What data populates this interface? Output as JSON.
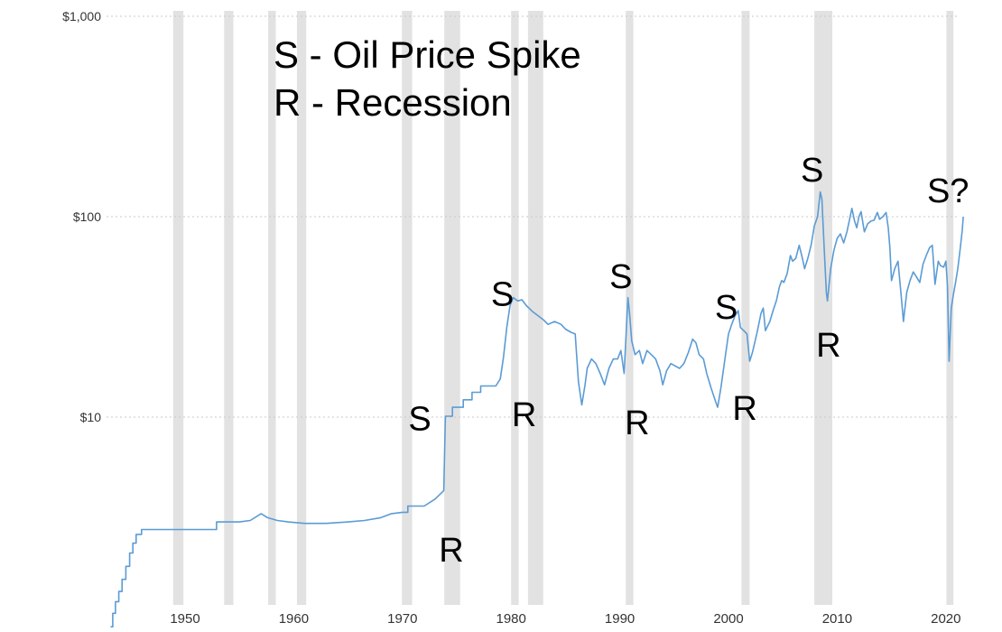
{
  "chart_data": {
    "type": "line",
    "title": "",
    "legend": {
      "line1": "S - Oil Price Spike",
      "line2": "R - Recession"
    },
    "y_axis": {
      "scale": "log",
      "ticks": [
        {
          "value": 10,
          "label": "$10"
        },
        {
          "value": 100,
          "label": "$100"
        },
        {
          "value": 1000,
          "label": "$1,000"
        }
      ]
    },
    "x_axis": {
      "ticks": [
        1950,
        1960,
        1970,
        1980,
        1990,
        2000,
        2010,
        2020
      ]
    },
    "grid": "horizontal-dotted",
    "colors": {
      "line": "#5b9bd5",
      "recession_band": "#e2e2e2",
      "gridline": "#c9c9c9",
      "axis_text": "#333333",
      "annotation_text": "#000000",
      "background": "#ffffff"
    },
    "recession_bands_years": [
      [
        1948.9,
        1949.85
      ],
      [
        1953.6,
        1954.45
      ],
      [
        1957.65,
        1958.35
      ],
      [
        1960.3,
        1961.15
      ],
      [
        1969.95,
        1970.9
      ],
      [
        1973.85,
        1975.3
      ],
      [
        1980.0,
        1980.7
      ],
      [
        1981.55,
        1982.95
      ],
      [
        1990.55,
        1991.25
      ],
      [
        2001.2,
        2001.95
      ],
      [
        2007.9,
        2009.55
      ],
      [
        2020.05,
        2020.7
      ]
    ],
    "annotations": [
      {
        "label": "S",
        "year": 1971.6,
        "price": 8.6
      },
      {
        "label": "R",
        "year": 1974.5,
        "price": 1.9
      },
      {
        "label": "S",
        "year": 1979.2,
        "price": 36
      },
      {
        "label": "R",
        "year": 1981.2,
        "price": 9.0
      },
      {
        "label": "S",
        "year": 1990.1,
        "price": 44
      },
      {
        "label": "R",
        "year": 1991.6,
        "price": 8.2
      },
      {
        "label": "S",
        "year": 1999.8,
        "price": 31
      },
      {
        "label": "R",
        "year": 2001.5,
        "price": 9.7
      },
      {
        "label": "S",
        "year": 2007.7,
        "price": 150
      },
      {
        "label": "R",
        "year": 2009.2,
        "price": 20
      },
      {
        "label": "S?",
        "year": 2020.2,
        "price": 118
      }
    ],
    "series": [
      {
        "name": "oil_price_usd",
        "points": [
          [
            1943.15,
            0.9
          ],
          [
            1943.35,
            0.9
          ],
          [
            1943.35,
            1.05
          ],
          [
            1943.6,
            1.05
          ],
          [
            1943.6,
            1.2
          ],
          [
            1943.9,
            1.2
          ],
          [
            1943.9,
            1.35
          ],
          [
            1944.2,
            1.35
          ],
          [
            1944.2,
            1.55
          ],
          [
            1944.55,
            1.55
          ],
          [
            1944.55,
            1.8
          ],
          [
            1944.9,
            1.8
          ],
          [
            1944.9,
            2.1
          ],
          [
            1945.2,
            2.1
          ],
          [
            1945.2,
            2.35
          ],
          [
            1945.5,
            2.35
          ],
          [
            1945.5,
            2.6
          ],
          [
            1946.0,
            2.6
          ],
          [
            1946.0,
            2.75
          ],
          [
            1948.0,
            2.75
          ],
          [
            1950.0,
            2.75
          ],
          [
            1952.9,
            2.75
          ],
          [
            1952.9,
            3.0
          ],
          [
            1955.0,
            3.0
          ],
          [
            1956.0,
            3.05
          ],
          [
            1957.0,
            3.3
          ],
          [
            1957.6,
            3.15
          ],
          [
            1958.5,
            3.05
          ],
          [
            1959.5,
            3.0
          ],
          [
            1961.0,
            2.95
          ],
          [
            1963.0,
            2.95
          ],
          [
            1965.0,
            3.0
          ],
          [
            1966.5,
            3.05
          ],
          [
            1968.0,
            3.15
          ],
          [
            1969.0,
            3.3
          ],
          [
            1970.0,
            3.35
          ],
          [
            1970.5,
            3.35
          ],
          [
            1970.5,
            3.6
          ],
          [
            1972.0,
            3.6
          ],
          [
            1973.0,
            3.9
          ],
          [
            1973.8,
            4.3
          ],
          [
            1973.95,
            10.1
          ],
          [
            1974.6,
            10.1
          ],
          [
            1974.6,
            11.2
          ],
          [
            1975.6,
            11.2
          ],
          [
            1975.6,
            12.2
          ],
          [
            1976.4,
            12.2
          ],
          [
            1976.4,
            13.3
          ],
          [
            1977.2,
            13.3
          ],
          [
            1977.2,
            14.3
          ],
          [
            1978.6,
            14.3
          ],
          [
            1979.0,
            15.5
          ],
          [
            1979.3,
            20
          ],
          [
            1979.6,
            28
          ],
          [
            1979.9,
            36
          ],
          [
            1980.2,
            39.5
          ],
          [
            1980.6,
            38
          ],
          [
            1981.0,
            38.5
          ],
          [
            1981.4,
            36
          ],
          [
            1982.0,
            33.5
          ],
          [
            1982.5,
            32
          ],
          [
            1983.0,
            30.5
          ],
          [
            1983.4,
            29
          ],
          [
            1984.0,
            30
          ],
          [
            1984.6,
            29
          ],
          [
            1985.0,
            27.5
          ],
          [
            1985.5,
            26.5
          ],
          [
            1985.9,
            26
          ],
          [
            1986.2,
            15
          ],
          [
            1986.5,
            11.5
          ],
          [
            1986.8,
            14.5
          ],
          [
            1987.0,
            17.5
          ],
          [
            1987.4,
            19.5
          ],
          [
            1987.8,
            18.5
          ],
          [
            1988.2,
            16.5
          ],
          [
            1988.6,
            14.5
          ],
          [
            1989.0,
            17.5
          ],
          [
            1989.4,
            19.5
          ],
          [
            1989.8,
            19.5
          ],
          [
            1990.1,
            21.5
          ],
          [
            1990.4,
            16.5
          ],
          [
            1990.6,
            27
          ],
          [
            1990.75,
            39.5
          ],
          [
            1990.9,
            33
          ],
          [
            1991.1,
            24
          ],
          [
            1991.4,
            20.5
          ],
          [
            1991.8,
            21.5
          ],
          [
            1992.1,
            18.5
          ],
          [
            1992.5,
            21.5
          ],
          [
            1992.9,
            20.5
          ],
          [
            1993.3,
            19.5
          ],
          [
            1993.7,
            17
          ],
          [
            1993.95,
            14.5
          ],
          [
            1994.3,
            17
          ],
          [
            1994.7,
            18.5
          ],
          [
            1995.1,
            18
          ],
          [
            1995.5,
            17.5
          ],
          [
            1995.9,
            18.5
          ],
          [
            1996.3,
            21
          ],
          [
            1996.7,
            24.5
          ],
          [
            1997.0,
            23.5
          ],
          [
            1997.3,
            20.5
          ],
          [
            1997.7,
            19.5
          ],
          [
            1998.0,
            16.5
          ],
          [
            1998.4,
            14
          ],
          [
            1998.8,
            12
          ],
          [
            1999.0,
            11.2
          ],
          [
            1999.3,
            14
          ],
          [
            1999.7,
            20
          ],
          [
            2000.0,
            26
          ],
          [
            2000.3,
            29
          ],
          [
            2000.6,
            32
          ],
          [
            2000.9,
            34
          ],
          [
            2001.1,
            28
          ],
          [
            2001.4,
            27
          ],
          [
            2001.7,
            26
          ],
          [
            2001.95,
            19
          ],
          [
            2002.2,
            21
          ],
          [
            2002.6,
            26
          ],
          [
            2003.0,
            33
          ],
          [
            2003.2,
            35
          ],
          [
            2003.4,
            27
          ],
          [
            2003.8,
            30
          ],
          [
            2004.1,
            34
          ],
          [
            2004.4,
            38
          ],
          [
            2004.7,
            45
          ],
          [
            2004.9,
            48
          ],
          [
            2005.1,
            47
          ],
          [
            2005.4,
            52
          ],
          [
            2005.7,
            64
          ],
          [
            2005.9,
            60
          ],
          [
            2006.2,
            62
          ],
          [
            2006.5,
            72
          ],
          [
            2006.8,
            62
          ],
          [
            2007.0,
            55
          ],
          [
            2007.3,
            62
          ],
          [
            2007.6,
            72
          ],
          [
            2007.9,
            90
          ],
          [
            2008.2,
            100
          ],
          [
            2008.45,
            133
          ],
          [
            2008.6,
            122
          ],
          [
            2008.8,
            70
          ],
          [
            2009.0,
            42
          ],
          [
            2009.1,
            38
          ],
          [
            2009.4,
            55
          ],
          [
            2009.7,
            68
          ],
          [
            2010.0,
            78
          ],
          [
            2010.3,
            82
          ],
          [
            2010.6,
            74
          ],
          [
            2010.9,
            84
          ],
          [
            2011.2,
            100
          ],
          [
            2011.35,
            110
          ],
          [
            2011.6,
            95
          ],
          [
            2011.8,
            88
          ],
          [
            2012.0,
            100
          ],
          [
            2012.2,
            106
          ],
          [
            2012.5,
            84
          ],
          [
            2012.8,
            92
          ],
          [
            2013.1,
            95
          ],
          [
            2013.4,
            96
          ],
          [
            2013.7,
            105
          ],
          [
            2013.9,
            97
          ],
          [
            2014.2,
            100
          ],
          [
            2014.5,
            105
          ],
          [
            2014.7,
            88
          ],
          [
            2014.85,
            70
          ],
          [
            2015.0,
            48
          ],
          [
            2015.3,
            55
          ],
          [
            2015.6,
            60
          ],
          [
            2015.9,
            40
          ],
          [
            2016.1,
            30
          ],
          [
            2016.4,
            42
          ],
          [
            2016.7,
            48
          ],
          [
            2017.0,
            53
          ],
          [
            2017.3,
            50
          ],
          [
            2017.6,
            47
          ],
          [
            2017.9,
            58
          ],
          [
            2018.2,
            64
          ],
          [
            2018.5,
            70
          ],
          [
            2018.75,
            72
          ],
          [
            2019.0,
            46
          ],
          [
            2019.3,
            60
          ],
          [
            2019.5,
            57
          ],
          [
            2019.8,
            56
          ],
          [
            2020.0,
            60
          ],
          [
            2020.15,
            45
          ],
          [
            2020.3,
            19
          ],
          [
            2020.5,
            35
          ],
          [
            2020.7,
            41
          ],
          [
            2020.9,
            47
          ],
          [
            2021.1,
            55
          ],
          [
            2021.3,
            68
          ],
          [
            2021.5,
            85
          ],
          [
            2021.6,
            100
          ]
        ]
      }
    ]
  }
}
